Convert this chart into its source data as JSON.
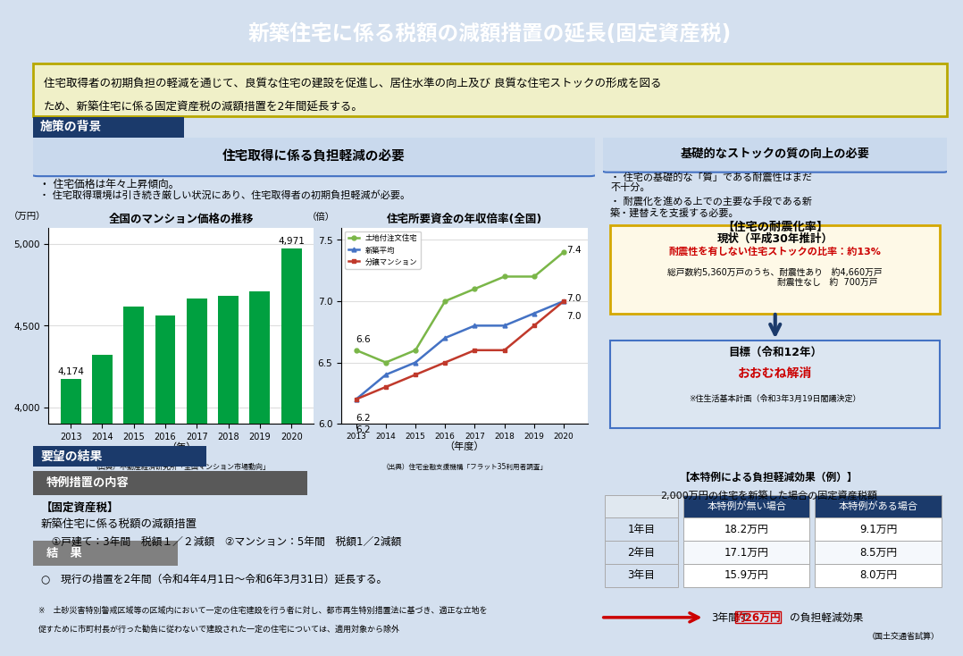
{
  "title": "新築住宅に係る税額の減額措置の延長(固定資産税)",
  "title_bg": "#1b3a6b",
  "title_color": "#ffffff",
  "summary_bg": "#f0f0c8",
  "summary_border": "#b8a800",
  "summary_text1": "住宅取得者の初期負担の軽減を通じて、良質な住宅の建設を促進し、居住水準の向上及び 良質な住宅ストックの形成を図る",
  "summary_text2": "ため、新築住宅に係る固定資産税の減額措置を2年間延長する。",
  "section1_bg": "#1b3a6b",
  "section1_text": "施策の背景",
  "section1_color": "#ffffff",
  "left_panel_title": "住宅取得に係る負担軽減の必要",
  "left_bullet1": "・ 住宅価格は年々上昇傾向。",
  "left_bullet2": "・ 住宅取得環境は引き続き厳しい状況にあり、住宅取得者の初期負担軽減が必要。",
  "right_panel_title": "基礎的なストックの質の向上の必要",
  "right_bullet1": "・ 住宅の基礎的な「質」である耐震性はまだ",
  "right_bullet1b": "不十分。",
  "right_bullet2": "・ 耐震化を進める上での主要な手段である新",
  "right_bullet2b": "築・建替えを支援する必要。",
  "bar_years": [
    "2013",
    "2014",
    "2015",
    "2016",
    "2017",
    "2018",
    "2019",
    "2020"
  ],
  "bar_values": [
    4174,
    4320,
    4617,
    4560,
    4664,
    4680,
    4712,
    4971
  ],
  "bar_color": "#00a040",
  "bar_title": "全国のマンション価格の推移",
  "bar_xlabel": "（年）",
  "bar_ylabel": "（万円）",
  "bar_ylim": [
    3900,
    5100
  ],
  "bar_yticks": [
    4000,
    4500,
    5000
  ],
  "bar_source": "（出典）不動産経済研究所「全国マンション市場動向」",
  "line_years": [
    2013,
    2014,
    2015,
    2016,
    2017,
    2018,
    2019,
    2020
  ],
  "line_land": [
    6.6,
    6.5,
    6.6,
    7.0,
    7.1,
    7.2,
    7.2,
    7.4
  ],
  "line_avg": [
    6.2,
    6.4,
    6.5,
    6.7,
    6.8,
    6.8,
    6.9,
    7.0
  ],
  "line_mansion": [
    6.2,
    6.3,
    6.4,
    6.5,
    6.6,
    6.6,
    6.8,
    7.0
  ],
  "line_title": "住宅所要資金の年収倍率(全国)",
  "line_xlabel": "（年度）",
  "line_ylabel": "（倍）",
  "line_ylim": [
    6.0,
    7.6
  ],
  "line_yticks": [
    6.0,
    6.5,
    7.0,
    7.5
  ],
  "line_source": "（出典）住宅金融支援機構「フラット35利用者調査」",
  "line_legend": [
    "土地付注文住宅",
    "新築平均",
    "分譲マンション"
  ],
  "line_colors": [
    "#7ab648",
    "#4472c4",
    "#c0392b"
  ],
  "quake_title": "【住宅の耐震化率】",
  "quake_current_label": "現状（平成30年推計）",
  "quake_current_text": "耐震性を有しない住宅ストックの比率：約13%",
  "quake_detail1": "総戸数約5,360万戸のうち、耐震性あり　約4,660万戸",
  "quake_detail2": "　　　　　　　　　　　　耐震性なし　約  700万戸",
  "quake_goal_label": "目標（令和12年）",
  "quake_goal_text": "おおむね解消",
  "quake_note": "※住生活基本計画（令和3年3月19日閣議決定）",
  "result_bg": "#1b3a6b",
  "result_text": "要望の結果",
  "result_color": "#ffffff",
  "tokurei_bg": "#595959",
  "tokurei_text": "特例措置の内容",
  "tokurei_color": "#ffffff",
  "kotei_title": "【固定資産税】",
  "kotei_line1": "新築住宅に係る税額の減額措置",
  "kotei_line2": "　①戸建て：3年間　税額１／２減額　②マンション：5年間　税額1／2減額",
  "kekka_bg": "#808080",
  "kekka_text": "結　果",
  "kekka_color": "#ffffff",
  "kekka_line": "○　現行の措置を2年間（令和4年4月1日～令和6年3月31日）延長する。",
  "note_text1": "※　土砂災害特別警戒区域等の区域内において一定の住宅建設を行う者に対し、都市再生特別措置法に基づき、適正な立地を",
  "note_text2": "促すために市町村長が行った勧告に従わないで建設された一定の住宅については、適用対象から除外",
  "table_title": "【本特例による負担軽減効果（例）】",
  "table_sub": "2,000万円の住宅を新築した場合の固定資産税額",
  "table_headers": [
    "",
    "本特例が無い場合",
    "本特例がある場合"
  ],
  "table_rows": [
    [
      "1年目",
      "18.2万円",
      "9.1万円"
    ],
    [
      "2年目",
      "17.1万円",
      "8.5万円"
    ],
    [
      "3年目",
      "15.9万円",
      "8.0万円"
    ]
  ],
  "table_effect": "3年間で",
  "table_effect2": "約26万円",
  "table_effect3": "の負担軽減効果",
  "table_source": "（国土交通省試算）",
  "arrow_color": "#cc0000",
  "main_bg": "#d4e0ef",
  "white": "#ffffff",
  "dark_blue": "#1b3a6b",
  "panel_border": "#4472c4",
  "left_panel_bg": "#c9d9ed"
}
